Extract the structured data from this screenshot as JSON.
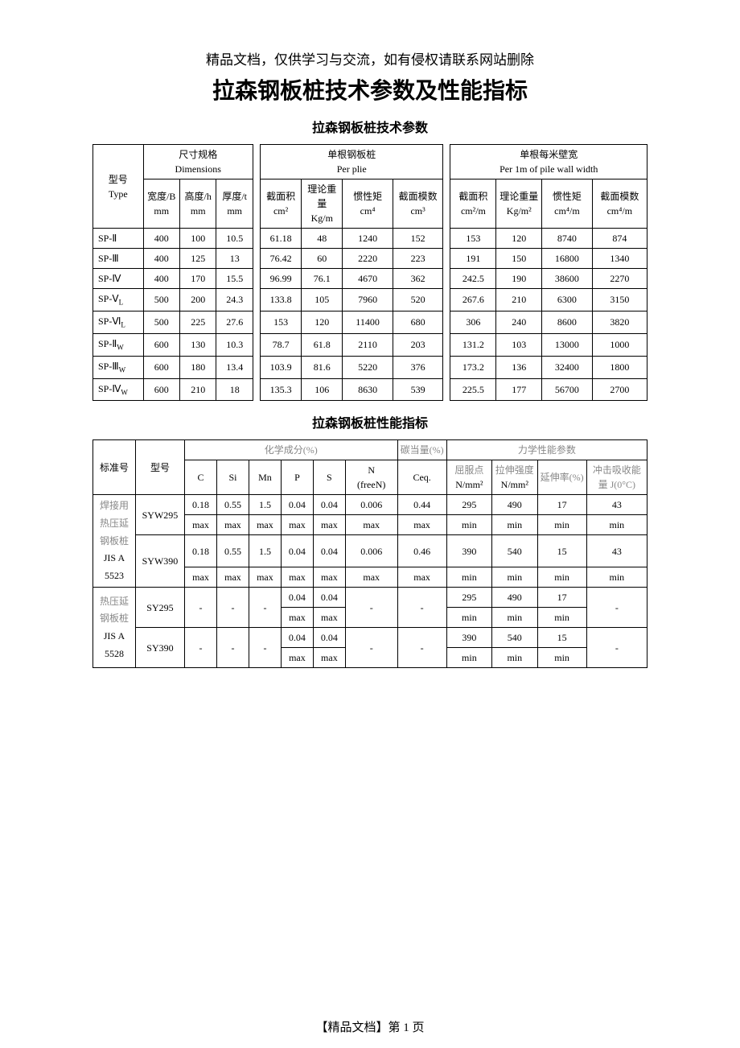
{
  "colors": {
    "text": "#000000",
    "border": "#000000",
    "bg": "#ffffff",
    "muted": "#888888"
  },
  "topNote": "精品文档，仅供学习与交流，如有侵权请联系网站删除",
  "mainTitle": "拉森钢板桩技术参数及性能指标",
  "section1Title": "拉森钢板桩技术参数",
  "section2Title": "拉森钢板桩性能指标",
  "footer": "【精品文档】第 1 页",
  "t1": {
    "h": {
      "typeCol": [
        "型号",
        "Type"
      ],
      "dims": [
        "尺寸规格",
        "Dimensions"
      ],
      "perPlie": [
        "单根钢板桩",
        "Per plie"
      ],
      "per1m": [
        "单根每米壁宽",
        "Per 1m of pile wall width"
      ],
      "widthB": "宽度/B",
      "heightH": "高度/h",
      "thickT": "厚度/t",
      "mm": "mm",
      "area": "截面积",
      "wt": "理论重量",
      "inertia": "惯性矩",
      "section": "截面模数",
      "cm2": "cm²",
      "kgm": "Kg/m",
      "cm4": "cm⁴",
      "cm3": "cm³",
      "cm2m": "cm²/m",
      "kgm2": "Kg/m²",
      "cm4m": "cm⁴/m",
      "cm4m2": "cm⁴/m"
    },
    "rows": [
      {
        "type": "SP-Ⅱ",
        "b": "400",
        "h": "100",
        "t": "10.5",
        "a": "61.18",
        "w": "48",
        "i": "1240",
        "s": "152",
        "am": "153",
        "wm": "120",
        "im": "8740",
        "sm": "874"
      },
      {
        "type": "SP-Ⅲ",
        "b": "400",
        "h": "125",
        "t": "13",
        "a": "76.42",
        "w": "60",
        "i": "2220",
        "s": "223",
        "am": "191",
        "wm": "150",
        "im": "16800",
        "sm": "1340"
      },
      {
        "type": "SP-Ⅳ",
        "b": "400",
        "h": "170",
        "t": "15.5",
        "a": "96.99",
        "w": "76.1",
        "i": "4670",
        "s": "362",
        "am": "242.5",
        "wm": "190",
        "im": "38600",
        "sm": "2270"
      },
      {
        "type": "SP-Ⅴ_L",
        "b": "500",
        "h": "200",
        "t": "24.3",
        "a": "133.8",
        "w": "105",
        "i": "7960",
        "s": "520",
        "am": "267.6",
        "wm": "210",
        "im": "6300",
        "sm": "3150"
      },
      {
        "type": "SP-Ⅵ_L",
        "b": "500",
        "h": "225",
        "t": "27.6",
        "a": "153",
        "w": "120",
        "i": "11400",
        "s": "680",
        "am": "306",
        "wm": "240",
        "im": "8600",
        "sm": "3820"
      },
      {
        "type": "SP-Ⅱ_W",
        "b": "600",
        "h": "130",
        "t": "10.3",
        "a": "78.7",
        "w": "61.8",
        "i": "2110",
        "s": "203",
        "am": "131.2",
        "wm": "103",
        "im": "13000",
        "sm": "1000"
      },
      {
        "type": "SP-Ⅲ_W",
        "b": "600",
        "h": "180",
        "t": "13.4",
        "a": "103.9",
        "w": "81.6",
        "i": "5220",
        "s": "376",
        "am": "173.2",
        "wm": "136",
        "im": "32400",
        "sm": "1800"
      },
      {
        "type": "SP-Ⅳ_W",
        "b": "600",
        "h": "210",
        "t": "18",
        "a": "135.3",
        "w": "106",
        "i": "8630",
        "s": "539",
        "am": "225.5",
        "wm": "177",
        "im": "56700",
        "sm": "2700"
      }
    ]
  },
  "t2": {
    "h": {
      "std": "标准号",
      "model": "型号",
      "chem": "化学成分(%)",
      "ceqh": "碳当量(%)",
      "mech": "力学性能参数",
      "C": "C",
      "Si": "Si",
      "Mn": "Mn",
      "P": "P",
      "S": "S",
      "N": "N",
      "freeN": "(freeN)",
      "Ceq": "Ceq.",
      "yield": "屈服点",
      "tensile": "拉伸强度",
      "elong": "延伸率(%)",
      "impact": "冲击吸收能",
      "nmm2": "N/mm²",
      "impactUnit": "量 J(0°C)"
    },
    "std1Lines": [
      "焊接用",
      "热压延",
      "钢板桩",
      "JIS A",
      "5523"
    ],
    "std2Lines": [
      "热压延",
      "钢板桩",
      "JIS A",
      "5528"
    ],
    "rows": [
      {
        "model": "SYW295",
        "C": "0.18",
        "Si": "0.55",
        "Mn": "1.5",
        "P": "0.04",
        "S": "0.04",
        "N": "0.006",
        "Ceq": "0.44",
        "y": "295",
        "t": "490",
        "e": "17",
        "im": "43",
        "C2": "max",
        "Si2": "max",
        "Mn2": "max",
        "P2": "max",
        "S2": "max",
        "N2": "max",
        "Ceq2": "max",
        "y2": "min",
        "t2": "min",
        "e2": "min",
        "im2": "min"
      },
      {
        "model": "SYW390",
        "C": "0.18",
        "Si": "0.55",
        "Mn": "1.5",
        "P": "0.04",
        "S": "0.04",
        "N": "0.006",
        "Ceq": "0.46",
        "y": "390",
        "t": "540",
        "e": "15",
        "im": "43",
        "C2": "max",
        "Si2": "max",
        "Mn2": "max",
        "P2": "max",
        "S2": "max",
        "N2": "max",
        "Ceq2": "max",
        "y2": "min",
        "t2": "min",
        "e2": "min",
        "im2": "min"
      },
      {
        "model": "SY295",
        "C": "-",
        "Si": "-",
        "Mn": "-",
        "P": "0.04",
        "S": "0.04",
        "N": "-",
        "Ceq": "-",
        "y": "295",
        "t": "490",
        "e": "17",
        "im": "-",
        "C2": "",
        "Si2": "",
        "Mn2": "",
        "P2": "max",
        "S2": "max",
        "N2": "",
        "Ceq2": "",
        "y2": "min",
        "t2": "min",
        "e2": "min",
        "im2": ""
      },
      {
        "model": "SY390",
        "C": "-",
        "Si": "-",
        "Mn": "-",
        "P": "0.04",
        "S": "0.04",
        "N": "-",
        "Ceq": "-",
        "y": "390",
        "t": "540",
        "e": "15",
        "im": "-",
        "C2": "",
        "Si2": "",
        "Mn2": "",
        "P2": "max",
        "S2": "max",
        "N2": "",
        "Ceq2": "",
        "y2": "min",
        "t2": "min",
        "e2": "min",
        "im2": ""
      }
    ]
  }
}
